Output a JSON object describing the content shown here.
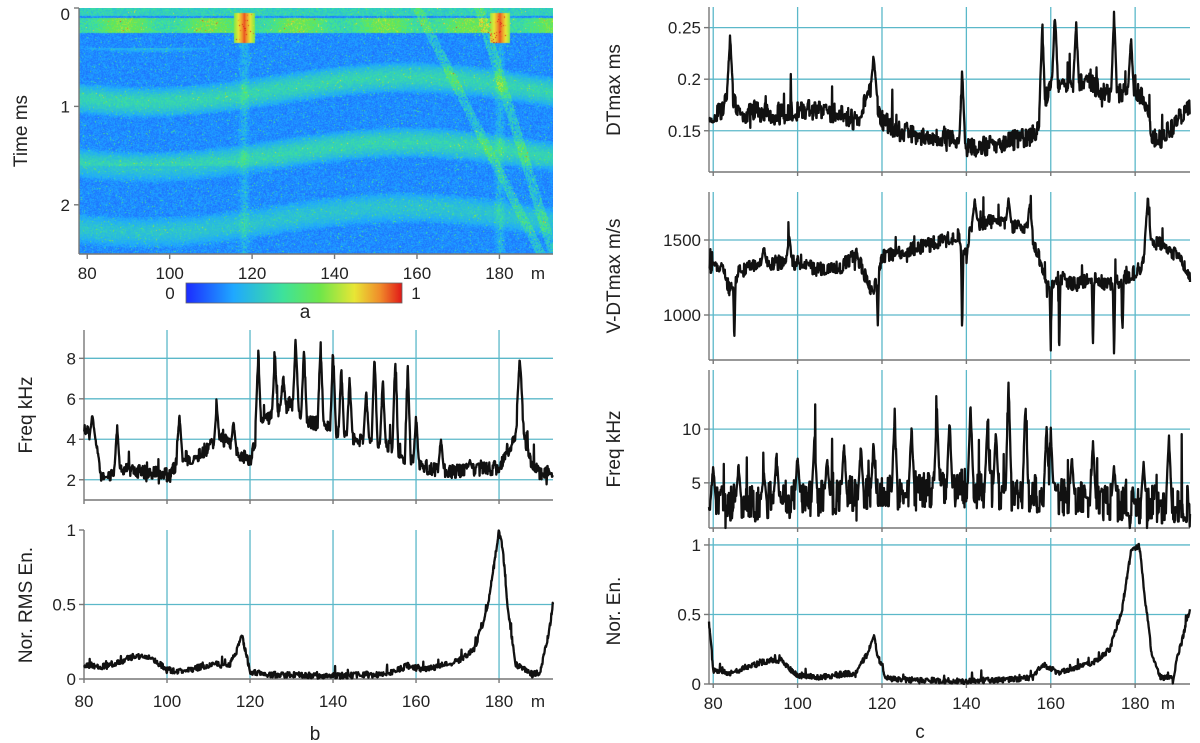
{
  "chart_data": [
    {
      "id": "a",
      "type": "heatmap",
      "panel_label": "a",
      "ylabel": "Time ms",
      "xlabel": "m",
      "xlim": [
        78,
        193
      ],
      "ylim": [
        2.5,
        0
      ],
      "x_ticks": [
        80,
        100,
        120,
        140,
        160,
        180
      ],
      "y_ticks": [
        0,
        1,
        2
      ],
      "colorbar": {
        "min_label": "0",
        "max_label": "1",
        "min": 0,
        "max": 1
      },
      "colors": {
        "low": "#1a2bff",
        "mid": "#3fe08a",
        "high": "#e3281a"
      },
      "features": {
        "strong_band_time_ms": [
          0.1,
          0.25
        ],
        "hot_spots_m": [
          118,
          180
        ],
        "diagonal_events_m": [
          [
            160,
            190
          ],
          [
            175,
            193
          ]
        ]
      }
    },
    {
      "id": "b1",
      "type": "line",
      "ylabel": "Freq kHz",
      "xlim": [
        80,
        193
      ],
      "ylim": [
        1,
        9.4
      ],
      "x_ticks": [
        80,
        100,
        120,
        140,
        160,
        180
      ],
      "y_ticks": [
        2,
        4,
        6,
        8
      ],
      "profile": [
        [
          80,
          4.6
        ],
        [
          83,
          3.8
        ],
        [
          84,
          2.2
        ],
        [
          90,
          2.5
        ],
        [
          98,
          2.3
        ],
        [
          101,
          2.2
        ],
        [
          103,
          3.2
        ],
        [
          106,
          3.0
        ],
        [
          110,
          3.6
        ],
        [
          114,
          4.0
        ],
        [
          117,
          3.3
        ],
        [
          120,
          3.0
        ],
        [
          122,
          4.6
        ],
        [
          126,
          5.3
        ],
        [
          130,
          5.8
        ],
        [
          134,
          4.8
        ],
        [
          138,
          4.8
        ],
        [
          142,
          4.2
        ],
        [
          146,
          4.0
        ],
        [
          150,
          3.9
        ],
        [
          154,
          3.7
        ],
        [
          158,
          3.0
        ],
        [
          162,
          2.6
        ],
        [
          168,
          2.4
        ],
        [
          175,
          2.5
        ],
        [
          180,
          2.6
        ],
        [
          184,
          4.2
        ],
        [
          185,
          5.5
        ],
        [
          187,
          3.2
        ],
        [
          190,
          2.3
        ],
        [
          193,
          2.4
        ]
      ],
      "peaks": [
        [
          82,
          5.3
        ],
        [
          88,
          4.8
        ],
        [
          103,
          5.4
        ],
        [
          112,
          5.8
        ],
        [
          116,
          5.0
        ],
        [
          122,
          8.6
        ],
        [
          126,
          8.4
        ],
        [
          128,
          7.3
        ],
        [
          131,
          9.3
        ],
        [
          133,
          8.7
        ],
        [
          137,
          9.1
        ],
        [
          140,
          8.7
        ],
        [
          142,
          7.9
        ],
        [
          144,
          7.2
        ],
        [
          148,
          6.6
        ],
        [
          150,
          8.5
        ],
        [
          152,
          7.2
        ],
        [
          155,
          8.4
        ],
        [
          158,
          8.2
        ],
        [
          160,
          5.3
        ],
        [
          166,
          4.2
        ],
        [
          173,
          3.0
        ],
        [
          185,
          8.3
        ]
      ],
      "noise": 0.35
    },
    {
      "id": "b2",
      "type": "line",
      "panel_label": "b",
      "ylabel": "Nor. RMS En.",
      "xlabel": "m",
      "xlim": [
        80,
        193
      ],
      "ylim": [
        0,
        1
      ],
      "x_ticks": [
        80,
        100,
        120,
        140,
        160,
        180
      ],
      "y_ticks": [
        0,
        0.5,
        1
      ],
      "profile": [
        [
          80,
          0.1
        ],
        [
          84,
          0.08
        ],
        [
          88,
          0.11
        ],
        [
          92,
          0.15
        ],
        [
          96,
          0.15
        ],
        [
          100,
          0.06
        ],
        [
          104,
          0.05
        ],
        [
          108,
          0.08
        ],
        [
          112,
          0.1
        ],
        [
          115,
          0.09
        ],
        [
          117,
          0.2
        ],
        [
          118,
          0.3
        ],
        [
          119,
          0.18
        ],
        [
          120,
          0.05
        ],
        [
          124,
          0.03
        ],
        [
          140,
          0.02
        ],
        [
          150,
          0.03
        ],
        [
          155,
          0.05
        ],
        [
          158,
          0.09
        ],
        [
          162,
          0.06
        ],
        [
          166,
          0.09
        ],
        [
          170,
          0.12
        ],
        [
          174,
          0.2
        ],
        [
          177,
          0.45
        ],
        [
          179,
          0.8
        ],
        [
          180,
          1.0
        ],
        [
          181,
          0.85
        ],
        [
          182,
          0.5
        ],
        [
          184,
          0.1
        ],
        [
          188,
          0.03
        ],
        [
          190,
          0.05
        ],
        [
          191,
          0.2
        ],
        [
          192,
          0.3
        ],
        [
          193,
          0.52
        ]
      ],
      "peaks": [],
      "noise": 0.02
    },
    {
      "id": "c1",
      "type": "line",
      "ylabel": "DTmax ms",
      "xlim": [
        79,
        193
      ],
      "ylim": [
        0.11,
        0.27
      ],
      "x_ticks": [
        80,
        100,
        120,
        140,
        160,
        180
      ],
      "y_ticks": [
        0.15,
        0.2,
        0.25
      ],
      "profile": [
        [
          79,
          0.165
        ],
        [
          82,
          0.17
        ],
        [
          84,
          0.19
        ],
        [
          86,
          0.165
        ],
        [
          90,
          0.17
        ],
        [
          95,
          0.165
        ],
        [
          100,
          0.17
        ],
        [
          105,
          0.17
        ],
        [
          110,
          0.165
        ],
        [
          114,
          0.16
        ],
        [
          117,
          0.185
        ],
        [
          118,
          0.19
        ],
        [
          120,
          0.16
        ],
        [
          124,
          0.15
        ],
        [
          130,
          0.145
        ],
        [
          135,
          0.145
        ],
        [
          138,
          0.14
        ],
        [
          140,
          0.135
        ],
        [
          145,
          0.135
        ],
        [
          150,
          0.14
        ],
        [
          155,
          0.145
        ],
        [
          157,
          0.15
        ],
        [
          158,
          0.17
        ],
        [
          160,
          0.2
        ],
        [
          164,
          0.19
        ],
        [
          168,
          0.2
        ],
        [
          172,
          0.19
        ],
        [
          176,
          0.185
        ],
        [
          180,
          0.19
        ],
        [
          182,
          0.18
        ],
        [
          184,
          0.145
        ],
        [
          186,
          0.14
        ],
        [
          190,
          0.16
        ],
        [
          193,
          0.175
        ]
      ],
      "peaks": [
        [
          84,
          0.245
        ],
        [
          118,
          0.225
        ],
        [
          139,
          0.215
        ],
        [
          158,
          0.26
        ],
        [
          161,
          0.27
        ],
        [
          166,
          0.26
        ],
        [
          175,
          0.27
        ],
        [
          179,
          0.245
        ]
      ],
      "noise": 0.01
    },
    {
      "id": "c2",
      "type": "line",
      "ylabel": "V-DTmax m/s",
      "xlim": [
        79,
        193
      ],
      "ylim": [
        700,
        1820
      ],
      "x_ticks": [
        80,
        100,
        120,
        140,
        160,
        180
      ],
      "y_ticks": [
        1000,
        1500
      ],
      "profile": [
        [
          79,
          1320
        ],
        [
          82,
          1330
        ],
        [
          84,
          1150
        ],
        [
          86,
          1300
        ],
        [
          90,
          1320
        ],
        [
          95,
          1350
        ],
        [
          100,
          1350
        ],
        [
          105,
          1300
        ],
        [
          110,
          1320
        ],
        [
          114,
          1400
        ],
        [
          117,
          1200
        ],
        [
          118,
          1150
        ],
        [
          120,
          1380
        ],
        [
          125,
          1430
        ],
        [
          130,
          1460
        ],
        [
          135,
          1500
        ],
        [
          138,
          1530
        ],
        [
          140,
          1400
        ],
        [
          141,
          1600
        ],
        [
          145,
          1620
        ],
        [
          150,
          1600
        ],
        [
          155,
          1560
        ],
        [
          157,
          1400
        ],
        [
          159,
          1200
        ],
        [
          162,
          1250
        ],
        [
          166,
          1200
        ],
        [
          170,
          1250
        ],
        [
          174,
          1200
        ],
        [
          178,
          1250
        ],
        [
          181,
          1300
        ],
        [
          183,
          1500
        ],
        [
          186,
          1480
        ],
        [
          190,
          1400
        ],
        [
          193,
          1250
        ]
      ],
      "peaks": [
        [
          85,
          820
        ],
        [
          92,
          1470
        ],
        [
          98,
          1550
        ],
        [
          119,
          920
        ],
        [
          139,
          880
        ],
        [
          142,
          1780
        ],
        [
          150,
          1790
        ],
        [
          155,
          1750
        ],
        [
          160,
          760
        ],
        [
          162,
          740
        ],
        [
          170,
          780
        ],
        [
          175,
          730
        ],
        [
          177,
          880
        ],
        [
          183,
          1800
        ]
      ],
      "noise": 50
    },
    {
      "id": "c3",
      "type": "line",
      "ylabel": "Freq kHz",
      "xlim": [
        79,
        193
      ],
      "ylim": [
        0.8,
        15.5
      ],
      "x_ticks": [
        80,
        100,
        120,
        140,
        160,
        180
      ],
      "y_ticks": [
        5,
        10
      ],
      "profile": [
        [
          79,
          3.0
        ],
        [
          90,
          3.2
        ],
        [
          100,
          3.5
        ],
        [
          110,
          3.8
        ],
        [
          120,
          4.0
        ],
        [
          130,
          4.5
        ],
        [
          140,
          4.5
        ],
        [
          150,
          4.2
        ],
        [
          160,
          3.8
        ],
        [
          170,
          3.4
        ],
        [
          180,
          3.0
        ],
        [
          190,
          3.0
        ],
        [
          193,
          3.2
        ]
      ],
      "peaks": [
        [
          133,
          12.5
        ],
        [
          141,
          12.8
        ],
        [
          150,
          15.0
        ],
        [
          154,
          13.0
        ],
        [
          145,
          11.2
        ],
        [
          123,
          12.0
        ],
        [
          136,
          11.3
        ],
        [
          159,
          11.0
        ],
        [
          127,
          10.6
        ],
        [
          160,
          10.3
        ],
        [
          147,
          10.2
        ],
        [
          104,
          9.7
        ],
        [
          118,
          9.0
        ],
        [
          115,
          8.7
        ],
        [
          111,
          9.0
        ],
        [
          170,
          9.3
        ],
        [
          188,
          10.0
        ],
        [
          95,
          8.2
        ],
        [
          100,
          8.0
        ],
        [
          107,
          7.6
        ],
        [
          165,
          7.5
        ],
        [
          175,
          7.0
        ],
        [
          182,
          7.2
        ],
        [
          86,
          6.9
        ],
        [
          80,
          6.8
        ],
        [
          92,
          6.2
        ]
      ],
      "noise": 1.8
    },
    {
      "id": "c4",
      "type": "line",
      "panel_label": "c",
      "ylabel": "Nor. En.",
      "xlabel": "m",
      "xlim": [
        79,
        193
      ],
      "ylim": [
        0,
        1.05
      ],
      "x_ticks": [
        80,
        100,
        120,
        140,
        160,
        180
      ],
      "y_ticks": [
        0,
        0.5,
        1
      ],
      "profile": [
        [
          79,
          0.45
        ],
        [
          80,
          0.1
        ],
        [
          84,
          0.08
        ],
        [
          88,
          0.12
        ],
        [
          92,
          0.16
        ],
        [
          96,
          0.17
        ],
        [
          100,
          0.06
        ],
        [
          106,
          0.05
        ],
        [
          110,
          0.07
        ],
        [
          114,
          0.08
        ],
        [
          117,
          0.25
        ],
        [
          118,
          0.35
        ],
        [
          119,
          0.2
        ],
        [
          121,
          0.04
        ],
        [
          126,
          0.03
        ],
        [
          140,
          0.02
        ],
        [
          150,
          0.03
        ],
        [
          156,
          0.05
        ],
        [
          158,
          0.14
        ],
        [
          162,
          0.08
        ],
        [
          166,
          0.12
        ],
        [
          170,
          0.15
        ],
        [
          174,
          0.25
        ],
        [
          177,
          0.55
        ],
        [
          179,
          0.95
        ],
        [
          181,
          1.0
        ],
        [
          182,
          0.7
        ],
        [
          184,
          0.2
        ],
        [
          186,
          0.05
        ],
        [
          189,
          0.04
        ],
        [
          190,
          0.2
        ],
        [
          191,
          0.3
        ],
        [
          193,
          0.55
        ]
      ],
      "peaks": [],
      "noise": 0.02
    }
  ]
}
